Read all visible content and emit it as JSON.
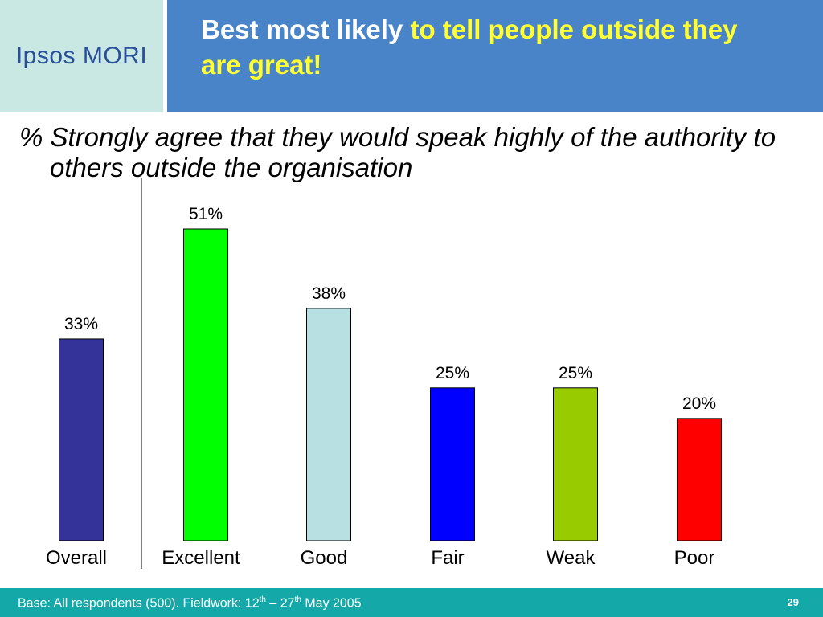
{
  "logo": {
    "text": "Ipsos MORI"
  },
  "title": {
    "part1": "Best most likely ",
    "part2": "to tell people outside they are great!"
  },
  "subtitle": "% Strongly agree that they would speak highly of the authority to others outside the organisation",
  "chart_data": {
    "type": "bar",
    "categories": [
      "Overall",
      "Excellent",
      "Good",
      "Fair",
      "Weak",
      "Poor"
    ],
    "values": [
      33,
      51,
      38,
      25,
      25,
      20
    ],
    "value_labels": [
      "33%",
      "51%",
      "38%",
      "25%",
      "25%",
      "20%"
    ],
    "colors": [
      "#333399",
      "#00ff00",
      "#b8e0e2",
      "#0000ff",
      "#99cc00",
      "#ff0000"
    ],
    "title": "",
    "xlabel": "",
    "ylabel": "",
    "ylim": [
      0,
      51
    ],
    "grid": false,
    "legend": "none"
  },
  "footer": {
    "base_prefix": "Base: All respondents (500). Fieldwork: 12",
    "sup1": "th",
    "mid": " – 27",
    "sup2": "th",
    "suffix": " May 2005",
    "page": "29"
  }
}
